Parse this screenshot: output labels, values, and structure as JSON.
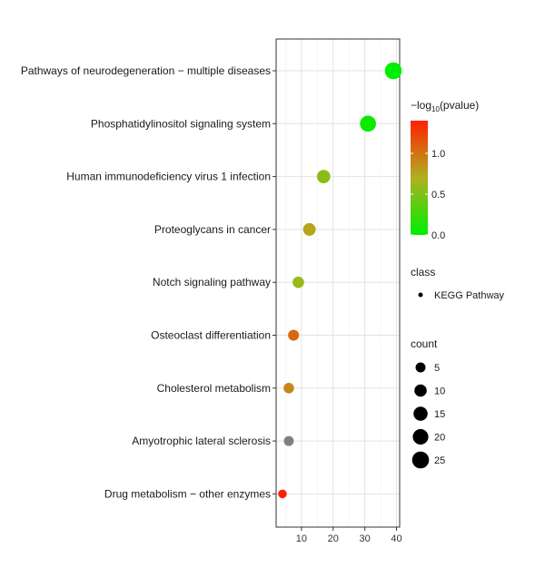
{
  "chart_data": {
    "type": "scatter",
    "title": "",
    "xlabel": "",
    "ylabel": "",
    "xlim": [
      2,
      41
    ],
    "x_ticks": [
      10,
      20,
      30,
      40
    ],
    "grid": true,
    "legend_position": "right",
    "categories": [
      "Pathways of neurodegeneration − multiple diseases",
      "Phosphatidylinositol signaling system",
      "Human immunodeficiency virus 1 infection",
      "Proteoglycans in cancer",
      "Notch signaling pathway",
      "Osteoclast differentiation",
      "Cholesterol metabolism",
      "Amyotrophic lateral sclerosis",
      "Drug metabolism − other enzymes"
    ],
    "series": [
      {
        "class": "KEGG Pathway",
        "points": [
          {
            "category": "Pathways of neurodegeneration − multiple diseases",
            "x": 39,
            "count": 25,
            "neg_log10_pvalue": 0.0
          },
          {
            "category": "Phosphatidylinositol signaling system",
            "x": 31,
            "count": 22,
            "neg_log10_pvalue": 0.05
          },
          {
            "category": "Human immunodeficiency virus 1 infection",
            "x": 17,
            "count": 13,
            "neg_log10_pvalue": 0.55
          },
          {
            "category": "Proteoglycans in cancer",
            "x": 12.5,
            "count": 11,
            "neg_log10_pvalue": 0.75
          },
          {
            "category": "Notch signaling pathway",
            "x": 9,
            "count": 8,
            "neg_log10_pvalue": 0.6
          },
          {
            "category": "Osteoclast differentiation",
            "x": 7.5,
            "count": 7,
            "neg_log10_pvalue": 1.05
          },
          {
            "category": "Cholesterol metabolism",
            "x": 6,
            "count": 6,
            "neg_log10_pvalue": 0.9
          },
          {
            "category": "Amyotrophic lateral sclerosis",
            "x": 6,
            "count": 5,
            "neg_log10_pvalue": null
          },
          {
            "category": "Drug metabolism − other enzymes",
            "x": 4,
            "count": 3,
            "neg_log10_pvalue": 1.4
          }
        ]
      }
    ],
    "color_scale": {
      "title_prefix": "−log",
      "title_sub": "10",
      "title_suffix": "(pvalue)",
      "min": 0.0,
      "max": 1.4,
      "ticks": [
        0.0,
        0.5,
        1.0
      ],
      "tick_labels": [
        "0.0",
        "0.5",
        "1.0"
      ],
      "colors": [
        "#00ee00",
        "#b0b020",
        "#ff2000"
      ],
      "na_color": "#808080"
    },
    "class_legend": {
      "title": "class",
      "items": [
        "KEGG Pathway"
      ]
    },
    "size_legend": {
      "title": "count",
      "values": [
        5,
        10,
        15,
        20,
        25
      ],
      "labels": [
        "5",
        "10",
        "15",
        "20",
        "25"
      ]
    }
  }
}
